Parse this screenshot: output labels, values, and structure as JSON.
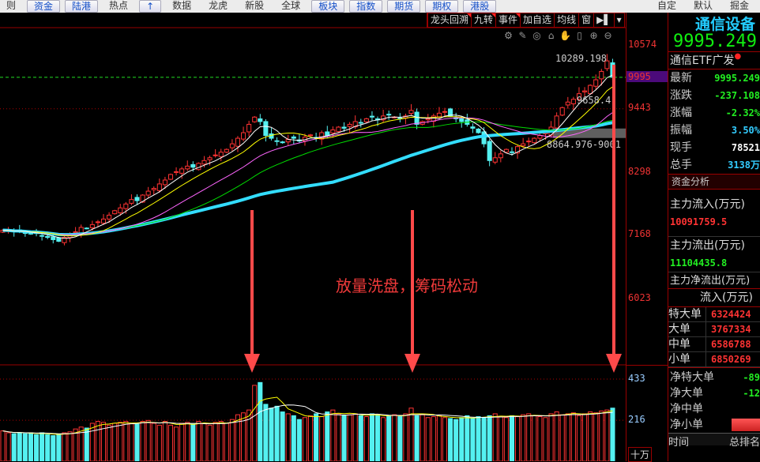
{
  "topbar": {
    "items": [
      {
        "label": "则",
        "btn": false
      },
      {
        "label": "资金",
        "btn": true
      },
      {
        "label": "陆港",
        "btn": true
      },
      {
        "label": "热点",
        "btn": false
      },
      {
        "label": "↑",
        "btn": true
      },
      {
        "label": "数据",
        "btn": false
      },
      {
        "label": "龙虎",
        "btn": false
      },
      {
        "label": "新股",
        "btn": false
      },
      {
        "label": "全球",
        "btn": false
      },
      {
        "label": "板块",
        "btn": true
      },
      {
        "label": "指数",
        "btn": true
      },
      {
        "label": "期货",
        "btn": true
      },
      {
        "label": "期权",
        "btn": true
      },
      {
        "label": "港股",
        "btn": true
      },
      {
        "label": "自定",
        "btn": false
      },
      {
        "label": "默认",
        "btn": false
      },
      {
        "label": "掘金",
        "btn": false
      }
    ]
  },
  "chart_tools": [
    "龙头回溯",
    "九转",
    "事件",
    "加自选",
    "均线",
    "窗",
    "▶▌",
    "▾"
  ],
  "chart_icons": [
    "gear-icon",
    "pen-icon",
    "eye-icon",
    "basket-icon",
    "hand-icon",
    "lock-icon",
    "zoom-in-icon",
    "zoom-out-icon"
  ],
  "price_axis": [
    "10574",
    "9995",
    "9443",
    "8298",
    "7168",
    "6023"
  ],
  "volume_axis": [
    "433",
    "216"
  ],
  "volume_unit": "十万",
  "labels": {
    "high": "10289.198",
    "ma_value": "9658.4",
    "range": "8864.976-9001"
  },
  "annotation": "放量洗盘，筹码松动",
  "colors": {
    "up": "#ff3333",
    "down": "#54f0f0",
    "ma5": "#ffffff",
    "ma10": "#ffff00",
    "ma20": "#ff66ff",
    "ma30": "#00dd00",
    "ma60": "#33ddff",
    "arrow": "#ff4a4a"
  },
  "candles": {
    "price_range": [
      6023,
      10574
    ],
    "volume_range": [
      0,
      433
    ],
    "last_price_line": 9995,
    "close": [
      7250,
      7240,
      7220,
      7230,
      7200,
      7180,
      7190,
      7150,
      7120,
      7080,
      7050,
      7120,
      7180,
      7220,
      7300,
      7280,
      7350,
      7400,
      7450,
      7520,
      7600,
      7650,
      7720,
      7800,
      7780,
      7880,
      7950,
      8000,
      8080,
      8150,
      8250,
      8300,
      8350,
      8400,
      8380,
      8450,
      8500,
      8550,
      8600,
      8650,
      8700,
      8800,
      8900,
      9000,
      9150,
      9280,
      9200,
      8950,
      8900,
      8850,
      8820,
      8880,
      8900,
      8850,
      8920,
      8960,
      8900,
      9000,
      8950,
      9050,
      9100,
      9080,
      9150,
      9200,
      9180,
      9250,
      9280,
      9230,
      9300,
      9320,
      9280,
      9250,
      9300,
      9400,
      9150,
      9200,
      9250,
      9300,
      9350,
      9380,
      9300,
      9250,
      9200,
      9150,
      9080,
      9000,
      8800,
      8500,
      8550,
      8620,
      8700,
      8650,
      8750,
      8800,
      8850,
      8900,
      8950,
      9000,
      9100,
      9300,
      9450,
      9550,
      9600,
      9700,
      9750,
      9850,
      9950,
      10100,
      10289,
      9995
    ],
    "volume": [
      160,
      150,
      145,
      150,
      145,
      150,
      140,
      150,
      140,
      135,
      140,
      150,
      155,
      170,
      180,
      175,
      200,
      210,
      205,
      190,
      200,
      205,
      210,
      200,
      195,
      210,
      215,
      200,
      190,
      210,
      190,
      180,
      200,
      205,
      195,
      210,
      200,
      190,
      205,
      210,
      200,
      220,
      245,
      255,
      270,
      400,
      415,
      300,
      280,
      290,
      260,
      250,
      240,
      220,
      230,
      240,
      250,
      235,
      260,
      270,
      250,
      240,
      245,
      250,
      240,
      235,
      250,
      245,
      230,
      240,
      245,
      235,
      250,
      280,
      240,
      245,
      230,
      235,
      240,
      230,
      225,
      220,
      230,
      240,
      225,
      235,
      230,
      240,
      250,
      235,
      230,
      240,
      235,
      245,
      250,
      240,
      235,
      230,
      250,
      260,
      245,
      250,
      255,
      240,
      250,
      260,
      255,
      265,
      270,
      280
    ]
  },
  "right": {
    "title": "通信设备",
    "price": "9995.249",
    "name": "通信ETF广发",
    "stats": [
      {
        "k": "最新",
        "v": "9995.249",
        "c": "#22ee22"
      },
      {
        "k": "涨跌",
        "v": "-237.108",
        "c": "#22ee22"
      },
      {
        "k": "涨幅",
        "v": "-2.32%",
        "c": "#22ee22"
      },
      {
        "k": "振幅",
        "v": "3.50%",
        "c": "#33ccff"
      },
      {
        "k": "现手",
        "v": "78521",
        "c": "#ffffff"
      },
      {
        "k": "总手",
        "v": "3138万",
        "c": "#33ccff"
      }
    ],
    "section": "资金分析",
    "inflow_label": "主力流入(万元)",
    "inflow": "10091759.5",
    "outflow_label": "主力流出(万元)",
    "outflow": "11104435.8",
    "net_label": "主力净流出(万元)",
    "table_header": "流入(万元)",
    "table": [
      {
        "k": "特大单",
        "v": "6324424"
      },
      {
        "k": "大单",
        "v": "3767334"
      },
      {
        "k": "中单",
        "v": "6586788"
      },
      {
        "k": "小单",
        "v": "6850269"
      }
    ],
    "net": [
      {
        "k": "净特大单",
        "v": "-89"
      },
      {
        "k": "净大单",
        "v": "-12"
      },
      {
        "k": "净中单",
        "v": ""
      },
      {
        "k": "净小单",
        "v": ""
      }
    ],
    "footer": [
      "时间",
      "总排名"
    ]
  }
}
